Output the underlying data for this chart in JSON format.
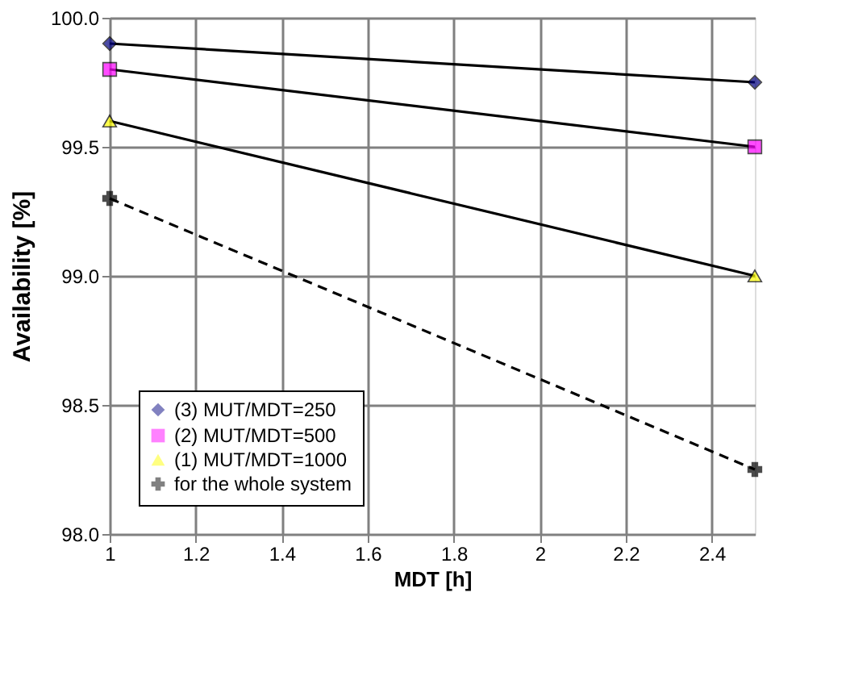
{
  "chart_data": {
    "type": "line",
    "xlabel": "MDT [h]",
    "ylabel": "Availability [%]",
    "x": [
      1,
      2.5
    ],
    "series": [
      {
        "name": "(3) MUT/MDT=250",
        "color": "#000080",
        "values": [
          99.9,
          99.75
        ],
        "marker": "diamond",
        "line_style": "solid"
      },
      {
        "name": "(2) MUT/MDT=500",
        "color": "#ff00ff",
        "values": [
          99.8,
          99.5
        ],
        "marker": "square",
        "line_style": "solid"
      },
      {
        "name": "(1) MUT/MDT=1000",
        "color": "#ffff00",
        "values": [
          99.6,
          99.0
        ],
        "marker": "triangle",
        "line_style": "solid"
      },
      {
        "name": "for the whole system",
        "color": "#000000",
        "values": [
          99.3,
          98.25
        ],
        "marker": "cross",
        "line_style": "dashed"
      }
    ],
    "xlim": [
      1,
      2.5
    ],
    "xticks": [
      1,
      1.2,
      1.4,
      1.6,
      1.8,
      2,
      2.2,
      2.4
    ],
    "ylim": [
      98.0,
      100.0
    ],
    "yticks": [
      {
        "value": 98.0,
        "label": "98.0"
      },
      {
        "value": 98.5,
        "label": "98.5"
      },
      {
        "value": 99.0,
        "label": "99.0"
      },
      {
        "value": 99.5,
        "label": "99.5"
      },
      {
        "value": 100.0,
        "label": "100.0"
      }
    ],
    "grid": true,
    "legend": "bottom left"
  }
}
